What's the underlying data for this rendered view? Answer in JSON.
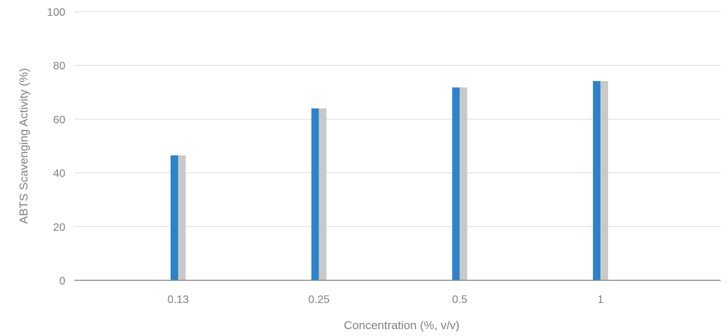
{
  "chart_data": {
    "type": "bar",
    "title": "",
    "xlabel": "Concentration (%, v/v)",
    "ylabel": "ABTS Scavenging Activity (%)",
    "categories": [
      "0.13",
      "0.25",
      "0.5",
      "1"
    ],
    "series": [
      {
        "values": [
          46.5,
          64,
          71.8,
          74.2
        ],
        "color": "#2e82c8"
      },
      {
        "values": [
          46.5,
          64,
          71.8,
          74.2
        ],
        "color": "#c9c9c9"
      }
    ],
    "ylim": [
      0,
      100
    ],
    "yticks": [
      0,
      20,
      40,
      60,
      80,
      100
    ],
    "grid": true,
    "legend": "none"
  }
}
